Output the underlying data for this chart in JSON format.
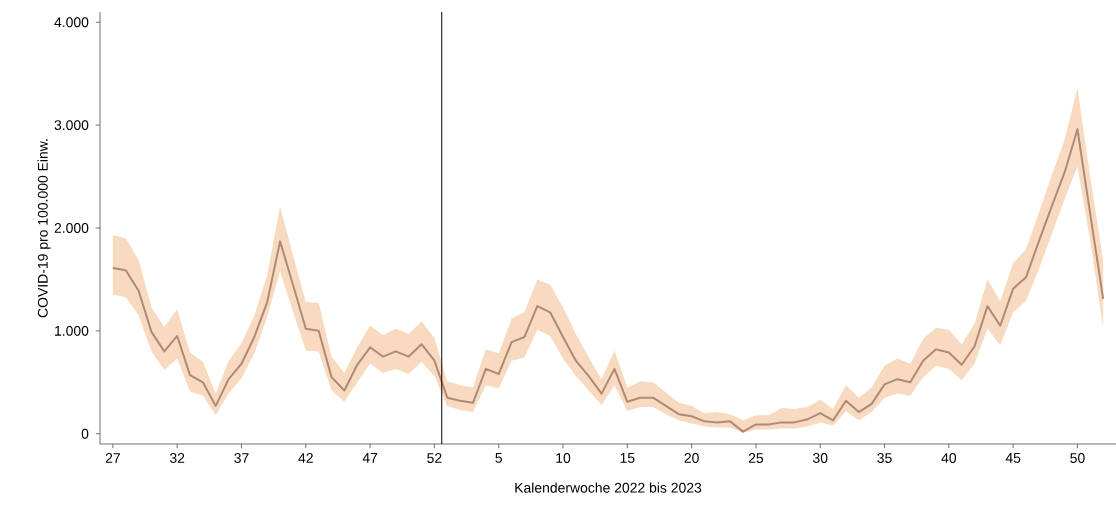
{
  "chart_data": {
    "type": "line",
    "xlabel": "Kalenderwoche 2022 bis 2023",
    "ylabel": "COVID-19 pro 100.000 Einw.",
    "x": [
      "2022-07-04",
      "2022-07-11",
      "2022-07-18",
      "2022-07-25",
      "2022-08-01",
      "2022-08-08",
      "2022-08-15",
      "2022-08-22",
      "2022-08-29",
      "2022-09-05",
      "2022-09-12",
      "2022-09-19",
      "2022-09-26",
      "2022-10-03",
      "2022-10-10",
      "2022-10-17",
      "2022-10-24",
      "2022-10-31",
      "2022-11-07",
      "2022-11-14",
      "2022-11-21",
      "2022-11-28",
      "2022-12-05",
      "2022-12-12",
      "2022-12-19",
      "2022-12-26",
      "2023-01-02",
      "2023-01-09",
      "2023-01-16",
      "2023-01-23",
      "2023-01-30",
      "2023-02-06",
      "2023-02-13",
      "2023-02-20",
      "2023-02-27",
      "2023-03-06",
      "2023-03-13",
      "2023-03-20",
      "2023-03-27",
      "2023-04-03",
      "2023-04-10",
      "2023-04-17",
      "2023-04-24",
      "2023-05-01",
      "2023-05-08",
      "2023-05-15",
      "2023-05-22",
      "2023-05-29",
      "2023-06-05",
      "2023-06-12",
      "2023-06-19",
      "2023-06-26",
      "2023-07-03",
      "2023-07-10",
      "2023-07-17",
      "2023-07-24",
      "2023-07-31",
      "2023-08-07",
      "2023-08-14",
      "2023-08-21",
      "2023-08-28",
      "2023-09-04",
      "2023-09-11",
      "2023-09-18",
      "2023-09-25",
      "2023-10-02",
      "2023-10-09",
      "2023-10-16",
      "2023-10-23",
      "2023-10-30",
      "2023-11-06",
      "2023-11-13",
      "2023-11-20",
      "2023-11-27",
      "2023-12-04",
      "2023-12-11",
      "2023-12-18",
      "2023-12-25"
    ],
    "series": [
      {
        "color": "#b08a73",
        "values": [
          1610,
          1590,
          1390,
          990,
          800,
          950,
          570,
          500,
          270,
          530,
          680,
          940,
          1280,
          1870,
          1450,
          1020,
          1000,
          550,
          420,
          670,
          840,
          750,
          800,
          750,
          870,
          710,
          350,
          320,
          300,
          630,
          580,
          890,
          940,
          1240,
          1180,
          940,
          710,
          560,
          390,
          630,
          310,
          350,
          350,
          270,
          190,
          170,
          120,
          110,
          120,
          20,
          90,
          90,
          110,
          110,
          140,
          200,
          130,
          320,
          210,
          290,
          480,
          530,
          500,
          710,
          820,
          790,
          670,
          850,
          1240,
          1050,
          1410,
          1520,
          1870,
          2210,
          2540,
          2960,
          2130,
          1310
        ],
        "upper": [
          1930,
          1900,
          1690,
          1230,
          1040,
          1210,
          790,
          700,
          390,
          710,
          880,
          1150,
          1540,
          2210,
          1740,
          1280,
          1270,
          750,
          590,
          840,
          1050,
          960,
          1020,
          970,
          1090,
          930,
          510,
          470,
          450,
          820,
          780,
          1120,
          1180,
          1500,
          1450,
          1230,
          970,
          740,
          530,
          810,
          450,
          510,
          500,
          400,
          300,
          270,
          200,
          210,
          190,
          130,
          180,
          180,
          250,
          240,
          260,
          330,
          240,
          470,
          350,
          450,
          660,
          730,
          680,
          920,
          1030,
          1010,
          870,
          1070,
          1500,
          1290,
          1660,
          1790,
          2150,
          2510,
          2860,
          3360,
          2490,
          1680
        ],
        "lower": [
          1350,
          1330,
          1150,
          800,
          620,
          730,
          410,
          370,
          180,
          390,
          540,
          780,
          1140,
          1580,
          1190,
          810,
          800,
          420,
          310,
          500,
          680,
          590,
          630,
          580,
          700,
          560,
          270,
          230,
          210,
          470,
          440,
          710,
          740,
          1010,
          950,
          730,
          560,
          420,
          280,
          470,
          220,
          260,
          260,
          190,
          130,
          100,
          70,
          60,
          60,
          10,
          40,
          40,
          50,
          50,
          70,
          110,
          80,
          220,
          130,
          210,
          350,
          390,
          370,
          550,
          660,
          630,
          520,
          680,
          1020,
          860,
          1180,
          1290,
          1600,
          1940,
          2280,
          2600,
          1870,
          1030
        ]
      }
    ],
    "xlim": [
      "2022-06-27",
      "2024-01-01"
    ],
    "xticks": [
      {
        "value": "2022-07-04",
        "label": "27"
      },
      {
        "value": "2022-08-08",
        "label": "32"
      },
      {
        "value": "2022-09-12",
        "label": "37"
      },
      {
        "value": "2022-10-17",
        "label": "42"
      },
      {
        "value": "2022-11-21",
        "label": "47"
      },
      {
        "value": "2022-12-26",
        "label": "52"
      },
      {
        "value": "2023-01-30",
        "label": "5"
      },
      {
        "value": "2023-03-06",
        "label": "10"
      },
      {
        "value": "2023-04-10",
        "label": "15"
      },
      {
        "value": "2023-05-15",
        "label": "20"
      },
      {
        "value": "2023-06-19",
        "label": "25"
      },
      {
        "value": "2023-07-24",
        "label": "30"
      },
      {
        "value": "2023-08-28",
        "label": "35"
      },
      {
        "value": "2023-10-02",
        "label": "40"
      },
      {
        "value": "2023-11-06",
        "label": "45"
      },
      {
        "value": "2023-12-11",
        "label": "50"
      }
    ],
    "ylim": [
      -100,
      4100
    ],
    "yticks": [
      0,
      {
        "value": 1000,
        "label": "1.000"
      },
      {
        "value": 2000,
        "label": "2.000"
      },
      {
        "value": 3000,
        "label": "3.000"
      },
      {
        "value": 4000,
        "label": "4.000"
      }
    ],
    "ref_lines": [
      {
        "axis": "x",
        "value": "2022-12-30",
        "color": "#000000"
      }
    ],
    "grid": false,
    "legend": false,
    "marker": "none",
    "line_style": "solid"
  }
}
